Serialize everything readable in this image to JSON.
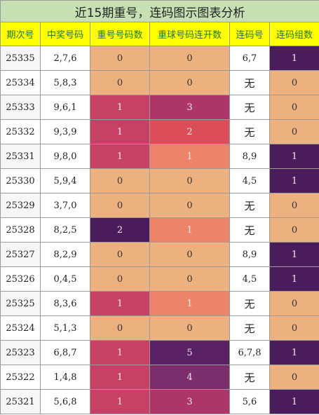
{
  "title": "近15期重号，连码图示图表分析",
  "headers": [
    "期次号",
    "中奖号码",
    "重号号码数",
    "重球号码连开数",
    "连码号",
    "连码组数"
  ],
  "colors": {
    "peach": "#edb180",
    "rose": "#c74066",
    "magenta": "#ac3668",
    "red": "#dc4d5a",
    "salmon": "#eb846b",
    "deep_purple": "#4a1c5c",
    "purple": "#5a2265",
    "plum": "#7c2d6c"
  },
  "rows": [
    {
      "period": "25335",
      "numbers": "2,7,6",
      "repeat": "0",
      "repeat_color": "peach",
      "consec": "0",
      "consec_color": "peach",
      "lian": "6,7",
      "groups": "1",
      "groups_color": "deep_purple"
    },
    {
      "period": "25334",
      "numbers": "5,8,3",
      "repeat": "0",
      "repeat_color": "peach",
      "consec": "0",
      "consec_color": "peach",
      "lian": "无",
      "groups": "0",
      "groups_color": "peach"
    },
    {
      "period": "25333",
      "numbers": "9,6,1",
      "repeat": "1",
      "repeat_color": "rose",
      "consec": "3",
      "consec_color": "magenta",
      "lian": "无",
      "groups": "0",
      "groups_color": "peach"
    },
    {
      "period": "25332",
      "numbers": "9,3,9",
      "repeat": "1",
      "repeat_color": "rose",
      "consec": "2",
      "consec_color": "red",
      "lian": "无",
      "groups": "0",
      "groups_color": "peach"
    },
    {
      "period": "25331",
      "numbers": "9,8,0",
      "repeat": "1",
      "repeat_color": "rose",
      "consec": "1",
      "consec_color": "salmon",
      "lian": "8,9",
      "groups": "1",
      "groups_color": "deep_purple"
    },
    {
      "period": "25330",
      "numbers": "5,9,4",
      "repeat": "0",
      "repeat_color": "peach",
      "consec": "0",
      "consec_color": "peach",
      "lian": "4,5",
      "groups": "1",
      "groups_color": "deep_purple"
    },
    {
      "period": "25329",
      "numbers": "3,7,0",
      "repeat": "0",
      "repeat_color": "peach",
      "consec": "0",
      "consec_color": "peach",
      "lian": "无",
      "groups": "0",
      "groups_color": "peach"
    },
    {
      "period": "25328",
      "numbers": "8,2,5",
      "repeat": "2",
      "repeat_color": "deep_purple",
      "consec": "1",
      "consec_color": "salmon",
      "lian": "无",
      "groups": "0",
      "groups_color": "peach"
    },
    {
      "period": "25327",
      "numbers": "8,2,9",
      "repeat": "0",
      "repeat_color": "peach",
      "consec": "0",
      "consec_color": "peach",
      "lian": "8,9",
      "groups": "1",
      "groups_color": "deep_purple"
    },
    {
      "period": "25326",
      "numbers": "0,4,5",
      "repeat": "0",
      "repeat_color": "peach",
      "consec": "0",
      "consec_color": "peach",
      "lian": "4,5",
      "groups": "1",
      "groups_color": "deep_purple"
    },
    {
      "period": "25325",
      "numbers": "8,3,6",
      "repeat": "1",
      "repeat_color": "rose",
      "consec": "1",
      "consec_color": "salmon",
      "lian": "无",
      "groups": "0",
      "groups_color": "peach"
    },
    {
      "period": "25324",
      "numbers": "5,1,3",
      "repeat": "0",
      "repeat_color": "peach",
      "consec": "0",
      "consec_color": "peach",
      "lian": "无",
      "groups": "0",
      "groups_color": "peach"
    },
    {
      "period": "25323",
      "numbers": "6,8,7",
      "repeat": "1",
      "repeat_color": "rose",
      "consec": "5",
      "consec_color": "purple",
      "lian": "6,7,8",
      "groups": "1",
      "groups_color": "deep_purple"
    },
    {
      "period": "25322",
      "numbers": "1,4,8",
      "repeat": "1",
      "repeat_color": "rose",
      "consec": "4",
      "consec_color": "plum",
      "lian": "无",
      "groups": "0",
      "groups_color": "peach"
    },
    {
      "period": "25321",
      "numbers": "5,6,8",
      "repeat": "1",
      "repeat_color": "rose",
      "consec": "3",
      "consec_color": "magenta",
      "lian": "5,6",
      "groups": "1",
      "groups_color": "deep_purple"
    }
  ]
}
